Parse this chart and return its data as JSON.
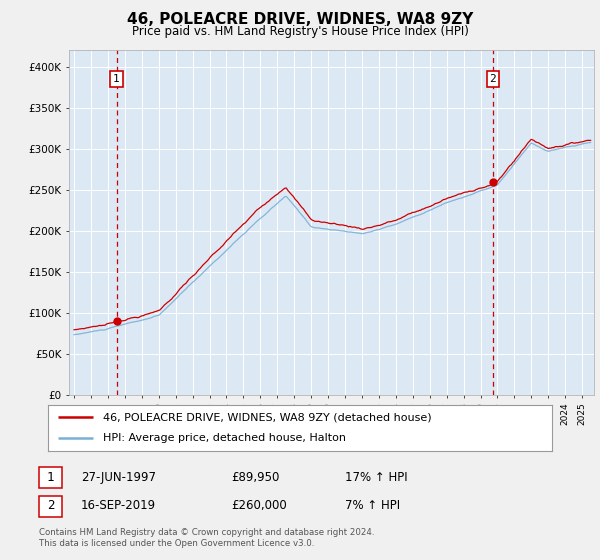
{
  "title": "46, POLEACRE DRIVE, WIDNES, WA8 9ZY",
  "subtitle": "Price paid vs. HM Land Registry's House Price Index (HPI)",
  "ylim": [
    0,
    420000
  ],
  "purchase1_date": 1997.49,
  "purchase1_price": 89950,
  "purchase2_date": 2019.71,
  "purchase2_price": 260000,
  "legend_red": "46, POLEACRE DRIVE, WIDNES, WA8 9ZY (detached house)",
  "legend_blue": "HPI: Average price, detached house, Halton",
  "footnote": "Contains HM Land Registry data © Crown copyright and database right 2024.\nThis data is licensed under the Open Government Licence v3.0.",
  "bg_color": "#dce9f5",
  "fig_bg_color": "#f0f0f0",
  "red_color": "#cc0000",
  "blue_color": "#7bafd4",
  "grid_color": "#ffffff"
}
